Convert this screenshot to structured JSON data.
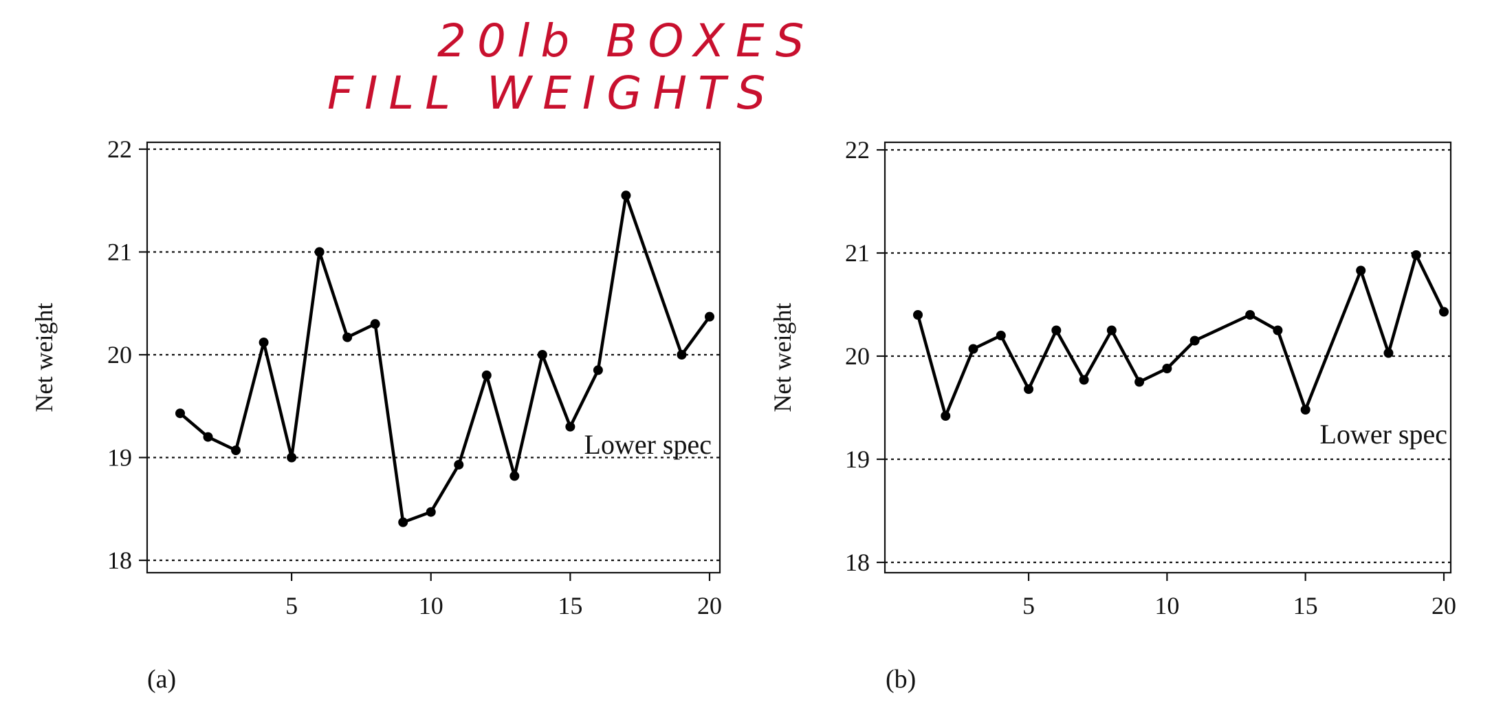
{
  "annotation": {
    "handwritten_line1": "20lb BOXES",
    "handwritten_line2": "FILL WEIGHTS",
    "color": "#c8102e"
  },
  "chart_data": [
    {
      "type": "line",
      "panel_label": "(a)",
      "ylabel": "Net weight",
      "xlabel": "",
      "ylim": [
        18,
        22
      ],
      "xlim": [
        0.5,
        20.3
      ],
      "yticks": [
        18,
        19,
        20,
        21,
        22
      ],
      "xticks": [
        5,
        10,
        15,
        20
      ],
      "grid": "horizontal dotted at each y tick",
      "annotation": "Lower spec",
      "x": [
        1,
        2,
        3,
        4,
        5,
        6,
        7,
        8,
        9,
        10,
        11,
        12,
        13,
        14,
        15,
        16,
        17,
        19,
        20
      ],
      "values": [
        19.43,
        19.2,
        19.07,
        20.12,
        19.0,
        21.0,
        20.17,
        20.3,
        18.37,
        18.47,
        18.93,
        19.8,
        18.82,
        20.0,
        19.3,
        19.85,
        21.55,
        20.0,
        20.37
      ]
    },
    {
      "type": "line",
      "panel_label": "(b)",
      "ylabel": "Net weight",
      "xlabel": "",
      "ylim": [
        18,
        22
      ],
      "xlim": [
        0.5,
        20.3
      ],
      "yticks": [
        18,
        19,
        20,
        21,
        22
      ],
      "xticks": [
        5,
        10,
        15,
        20
      ],
      "grid": "horizontal dotted at each y tick",
      "annotation": "Lower spec",
      "x": [
        1,
        2,
        3,
        4,
        5,
        6,
        7,
        8,
        9,
        10,
        11,
        13,
        14,
        15,
        17,
        18,
        19,
        20
      ],
      "values": [
        20.4,
        19.42,
        20.07,
        20.2,
        19.68,
        20.25,
        19.77,
        20.25,
        19.75,
        19.88,
        20.15,
        20.4,
        20.25,
        19.48,
        20.83,
        20.03,
        20.98,
        20.43
      ]
    }
  ]
}
